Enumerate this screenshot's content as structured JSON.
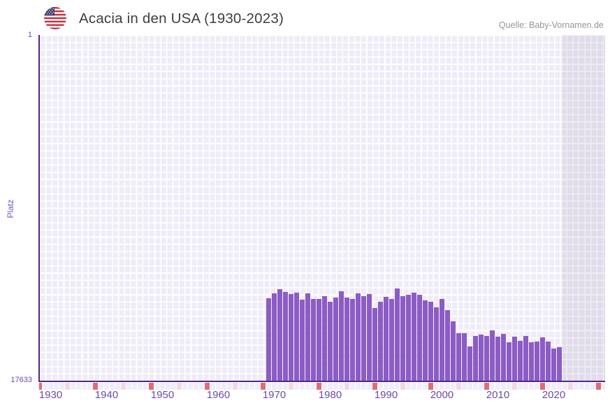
{
  "header": {
    "title": "Acacia in den USA (1930-2023)",
    "flag_icon": "us-flag",
    "source": "Quelle: Baby-Vornamen.de"
  },
  "chart_data": {
    "type": "bar",
    "title": "Acacia in den USA (1930-2023)",
    "xlabel": "",
    "ylabel": "Platz",
    "series_name": "Acacia",
    "y_axis": {
      "top_label": "1",
      "bottom_label": "17633",
      "inverted": true,
      "best_rank_at_top": true
    },
    "ylim": [
      1,
      17633
    ],
    "x_axis": {
      "start": 1928,
      "end": 2029,
      "tick_years": [
        1930,
        1940,
        1950,
        1960,
        1970,
        1980,
        1990,
        2000,
        2010,
        2020
      ]
    },
    "x": [
      1969,
      1970,
      1971,
      1972,
      1973,
      1974,
      1975,
      1976,
      1977,
      1978,
      1979,
      1980,
      1981,
      1982,
      1983,
      1984,
      1985,
      1986,
      1987,
      1988,
      1989,
      1990,
      1991,
      1992,
      1993,
      1994,
      1995,
      1996,
      1997,
      1998,
      1999,
      2000,
      2001,
      2002,
      2003,
      2004,
      2005,
      2006,
      2007,
      2008,
      2009,
      2010,
      2011,
      2012,
      2013,
      2014,
      2015,
      2016,
      2017,
      2018,
      2019,
      2020,
      2021
    ],
    "values": [
      13430,
      13180,
      12965,
      13110,
      13215,
      13145,
      13500,
      13180,
      13465,
      13465,
      13320,
      13605,
      13395,
      13075,
      13395,
      13465,
      13180,
      13320,
      13215,
      13915,
      13605,
      13350,
      13465,
      12920,
      13320,
      13240,
      13155,
      13250,
      13535,
      13620,
      13890,
      13465,
      14045,
      14605,
      15200,
      15210,
      15870,
      15365,
      15290,
      15355,
      15080,
      15400,
      15255,
      15675,
      15380,
      15590,
      15365,
      15675,
      15650,
      15415,
      15630,
      15985,
      15935
    ],
    "no_data_band": {
      "from_year": 2022
    },
    "tick_strip": {
      "decade_marker_color": "#e06b78",
      "half_decade_marker_color": "#f3d7e2",
      "base_color": "#f0edf9"
    },
    "colors": {
      "bar": "#8c5cc5",
      "grid_cell": "#efecf8",
      "axis_line": "#4b2b85",
      "tick_text": "#6d4ba6"
    },
    "legend": "none",
    "grid": "checkered-background"
  }
}
